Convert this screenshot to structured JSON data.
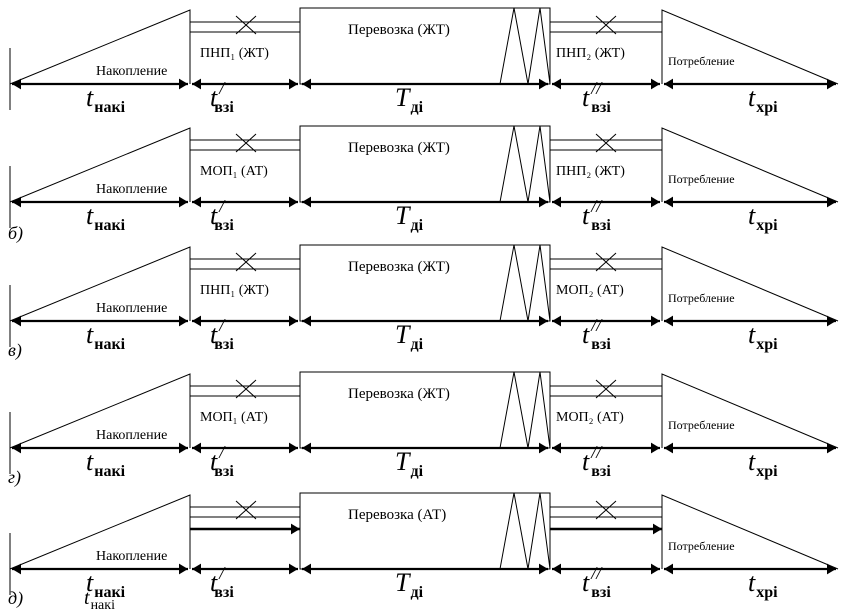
{
  "rows": [
    {
      "variant_label": "",
      "accumulation": "Накопление",
      "transfer_1": "ПНП₁ (ЖТ)",
      "haul": "Перевозка (ЖТ)",
      "transfer_2": "ПНП₂ (ЖТ)",
      "consumption": "Потребление"
    },
    {
      "variant_label": "б)",
      "accumulation": "Накопление",
      "transfer_1": "МОП₁ (АТ)",
      "haul": "Перевозка (ЖТ)",
      "transfer_2": "ПНП₂ (ЖТ)",
      "consumption": "Потребление"
    },
    {
      "variant_label": "в)",
      "accumulation": "Накопление",
      "transfer_1": "ПНП₁ (ЖТ)",
      "haul": "Перевозка (ЖТ)",
      "transfer_2": "МОП₂ (АТ)",
      "consumption": "Потребление"
    },
    {
      "variant_label": "г)",
      "accumulation": "Накопление",
      "transfer_1": "МОП₁ (АТ)",
      "haul": "Перевозка (ЖТ)",
      "transfer_2": "МОП₂ (АТ)",
      "consumption": "Потребление"
    },
    {
      "variant_label": "д)",
      "accumulation": "Накопление",
      "transfer_1": "",
      "haul": "Перевозка (АТ)",
      "transfer_2": "",
      "consumption": "Потребление"
    }
  ],
  "time_labels": {
    "t_acc": "tнакi",
    "t_tr1": "t/взi",
    "t_haul": "Tдi",
    "t_tr2": "t//взi",
    "t_cons": "tхрi"
  },
  "bottom_caption": "tнакi"
}
